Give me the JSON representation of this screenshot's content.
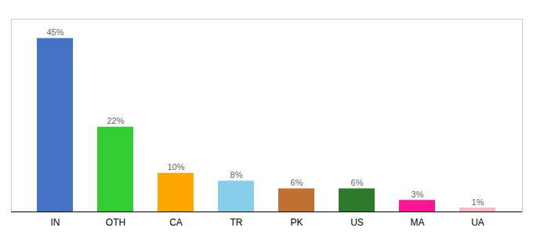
{
  "chart_data": {
    "type": "bar",
    "categories": [
      "IN",
      "OTH",
      "CA",
      "TR",
      "PK",
      "US",
      "MA",
      "UA"
    ],
    "values": [
      45,
      22,
      10,
      8,
      6,
      6,
      3,
      1
    ],
    "value_labels": [
      "45%",
      "22%",
      "10%",
      "8%",
      "6%",
      "6%",
      "3%",
      "1%"
    ],
    "data_labels": true,
    "colors": [
      "#4472C4",
      "#33CC33",
      "#FFA500",
      "#87CEEB",
      "#C07030",
      "#2D7A2D",
      "#FF1493",
      "#FFB6C1"
    ],
    "ylim": [
      0,
      50
    ],
    "tick_labels": "x",
    "grid": false
  }
}
